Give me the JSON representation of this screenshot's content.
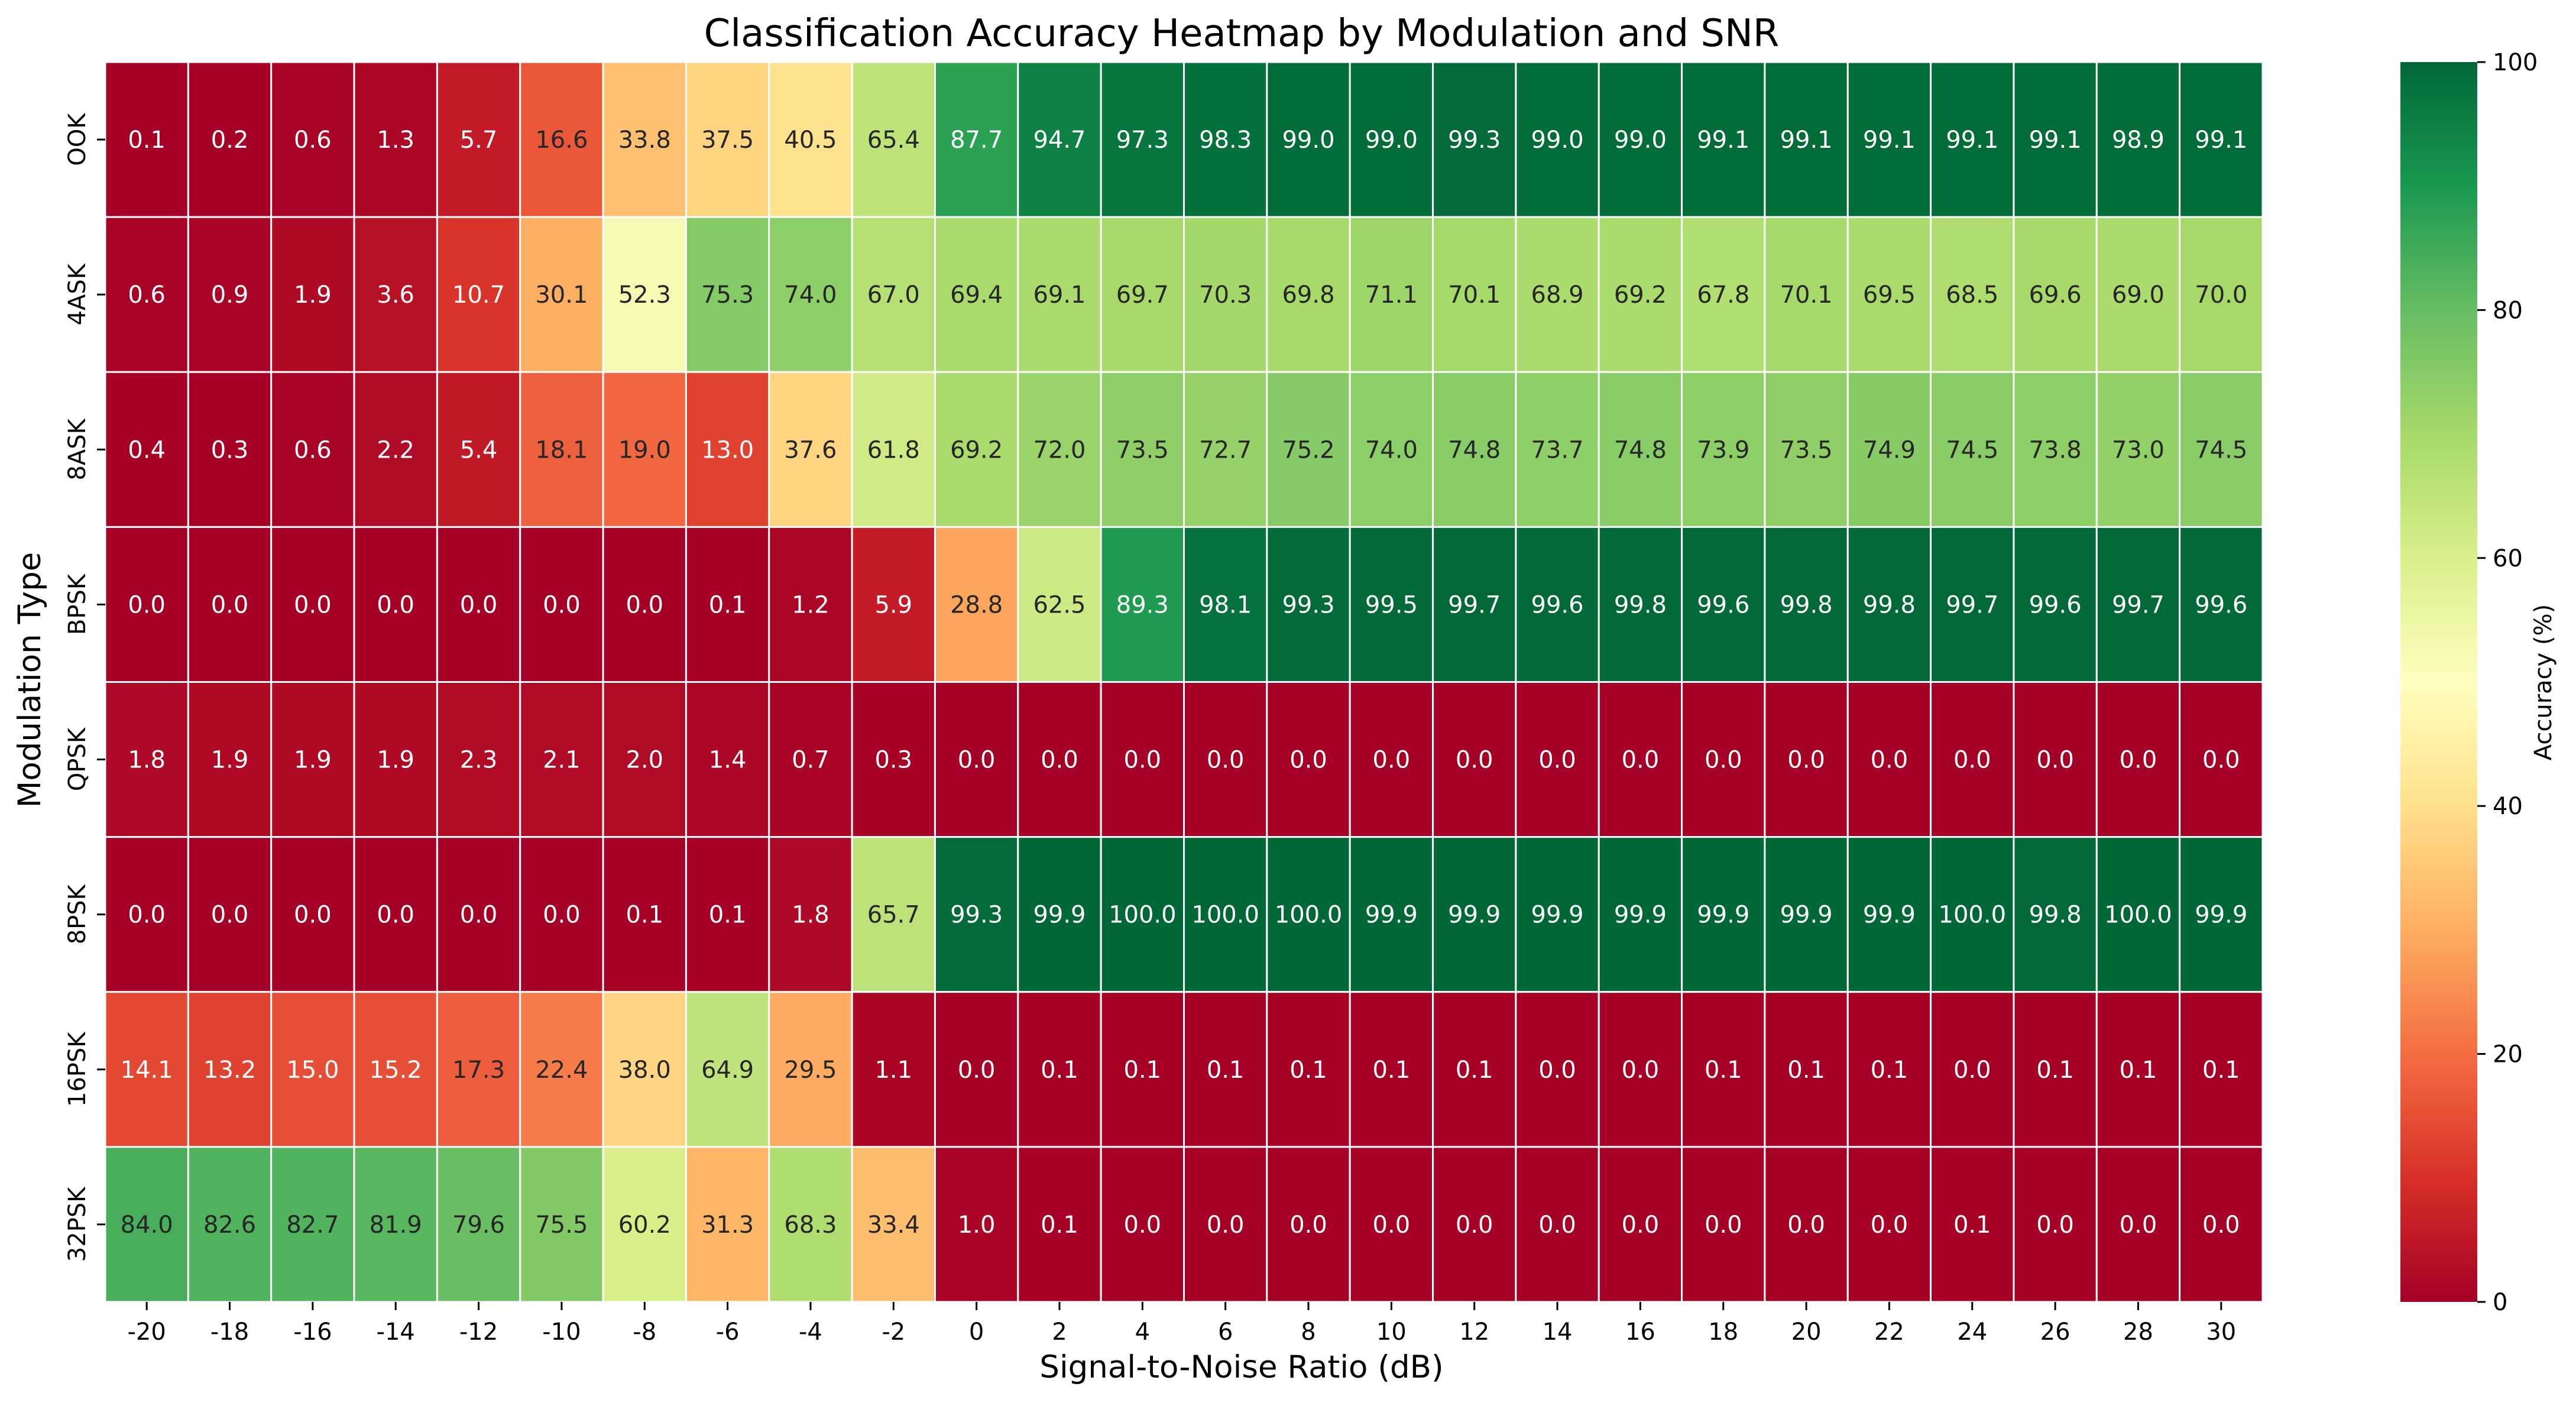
{
  "chart_data": {
    "type": "heatmap",
    "title": "Classification Accuracy Heatmap by Modulation and SNR",
    "xlabel": "Signal-to-Noise Ratio (dB)",
    "ylabel": "Modulation Type",
    "x": [
      "-20",
      "-18",
      "-16",
      "-14",
      "-12",
      "-10",
      "-8",
      "-6",
      "-4",
      "-2",
      "0",
      "2",
      "4",
      "6",
      "8",
      "10",
      "12",
      "14",
      "16",
      "18",
      "20",
      "22",
      "24",
      "26",
      "28",
      "30"
    ],
    "y": [
      "OOK",
      "4ASK",
      "8ASK",
      "BPSK",
      "QPSK",
      "8PSK",
      "16PSK",
      "32PSK"
    ],
    "values": [
      [
        0.1,
        0.2,
        0.6,
        1.3,
        5.7,
        16.6,
        33.8,
        37.5,
        40.5,
        65.4,
        87.7,
        94.7,
        97.3,
        98.3,
        99.0,
        99.0,
        99.3,
        99.0,
        99.0,
        99.1,
        99.1,
        99.1,
        99.1,
        99.1,
        98.9,
        99.1
      ],
      [
        0.6,
        0.9,
        1.9,
        3.6,
        10.7,
        30.1,
        52.3,
        75.3,
        74.0,
        67.0,
        69.4,
        69.1,
        69.7,
        70.3,
        69.8,
        71.1,
        70.1,
        68.9,
        69.2,
        67.8,
        70.1,
        69.5,
        68.5,
        69.6,
        69.0,
        70.0
      ],
      [
        0.4,
        0.3,
        0.6,
        2.2,
        5.4,
        18.1,
        19.0,
        13.0,
        37.6,
        61.8,
        69.2,
        72.0,
        73.5,
        72.7,
        75.2,
        74.0,
        74.8,
        73.7,
        74.8,
        73.9,
        73.5,
        74.9,
        74.5,
        73.8,
        73.0,
        74.5
      ],
      [
        0.0,
        0.0,
        0.0,
        0.0,
        0.0,
        0.0,
        0.0,
        0.1,
        1.2,
        5.9,
        28.8,
        62.5,
        89.3,
        98.1,
        99.3,
        99.5,
        99.7,
        99.6,
        99.8,
        99.6,
        99.8,
        99.8,
        99.7,
        99.6,
        99.7,
        99.6
      ],
      [
        1.8,
        1.9,
        1.9,
        1.9,
        2.3,
        2.1,
        2.0,
        1.4,
        0.7,
        0.3,
        0.0,
        0.0,
        0.0,
        0.0,
        0.0,
        0.0,
        0.0,
        0.0,
        0.0,
        0.0,
        0.0,
        0.0,
        0.0,
        0.0,
        0.0,
        0.0
      ],
      [
        0.0,
        0.0,
        0.0,
        0.0,
        0.0,
        0.0,
        0.1,
        0.1,
        1.8,
        65.7,
        99.3,
        99.9,
        100.0,
        100.0,
        100.0,
        99.9,
        99.9,
        99.9,
        99.9,
        99.9,
        99.9,
        99.9,
        100.0,
        99.8,
        100.0,
        99.9
      ],
      [
        14.1,
        13.2,
        15.0,
        15.2,
        17.3,
        22.4,
        38.0,
        64.9,
        29.5,
        1.1,
        0.0,
        0.1,
        0.1,
        0.1,
        0.1,
        0.1,
        0.1,
        0.0,
        0.0,
        0.1,
        0.1,
        0.1,
        0.0,
        0.1,
        0.1,
        0.1
      ],
      [
        84.0,
        82.6,
        82.7,
        81.9,
        79.6,
        75.5,
        60.2,
        31.3,
        68.3,
        33.4,
        1.0,
        0.1,
        0.0,
        0.0,
        0.0,
        0.0,
        0.0,
        0.0,
        0.0,
        0.0,
        0.0,
        0.0,
        0.1,
        0.0,
        0.0,
        0.0
      ]
    ],
    "vmin": 0,
    "vmax": 100,
    "value_format": "one decimal",
    "colormap": "RdYlGn",
    "colorbar": {
      "label": "Accuracy (%)",
      "ticks": [
        "0",
        "20",
        "40",
        "60",
        "80",
        "100"
      ],
      "placement": "right"
    },
    "grid": false
  }
}
